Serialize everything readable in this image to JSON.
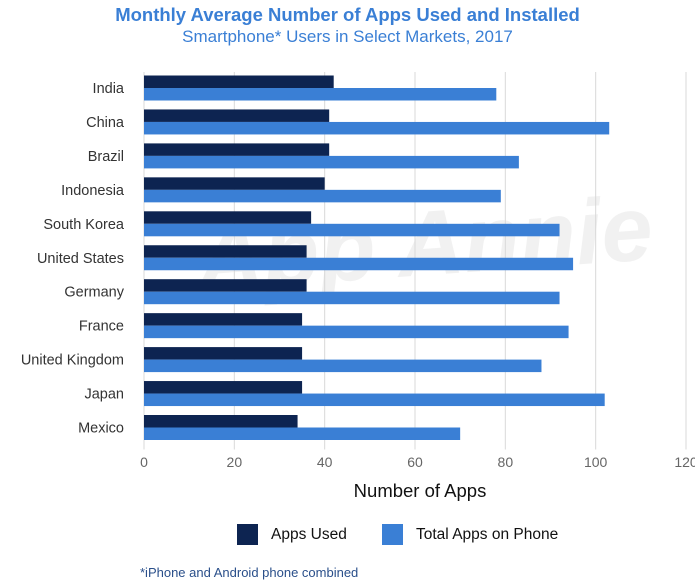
{
  "chart_data": {
    "type": "bar",
    "orientation": "horizontal",
    "title": "Monthly Average Number of Apps Used and Installed",
    "subtitle": "Smartphone* Users in Select Markets, 2017",
    "xlabel": "Number of Apps",
    "ylabel": "",
    "xlim": [
      0,
      120
    ],
    "xticks": [
      0,
      20,
      40,
      60,
      80,
      100,
      120
    ],
    "grid": true,
    "legend_position": "bottom",
    "categories": [
      "India",
      "China",
      "Brazil",
      "Indonesia",
      "South Korea",
      "United States",
      "Germany",
      "France",
      "United Kingdom",
      "Japan",
      "Mexico"
    ],
    "series": [
      {
        "name": "Apps Used",
        "color": "#0d2451",
        "values": [
          42,
          41,
          41,
          40,
          37,
          36,
          36,
          35,
          35,
          35,
          34
        ]
      },
      {
        "name": "Total Apps on Phone",
        "color": "#3a7fd5",
        "values": [
          78,
          103,
          83,
          79,
          92,
          95,
          92,
          94,
          88,
          102,
          70
        ]
      }
    ],
    "watermark": "App Annie",
    "footnote": "*iPhone and Android phone combined"
  }
}
